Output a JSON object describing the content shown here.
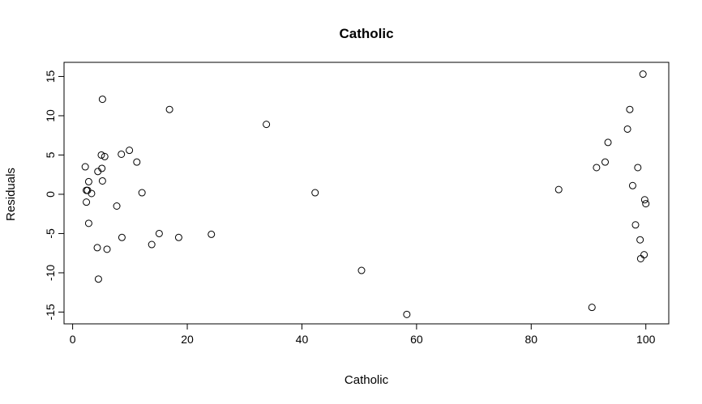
{
  "chart_data": {
    "type": "scatter",
    "title": "Catholic",
    "xlabel": "Catholic",
    "ylabel": "Residuals",
    "xlim": [
      -1.5,
      104
    ],
    "ylim": [
      -16.5,
      16.8
    ],
    "xticks": [
      0,
      20,
      40,
      60,
      80,
      100
    ],
    "yticks": [
      -15,
      -10,
      -5,
      0,
      5,
      10,
      15
    ],
    "xtick_labels": [
      "0",
      "20",
      "40",
      "60",
      "80",
      "100"
    ],
    "ytick_labels": [
      "-15",
      "-10",
      "-5",
      "0",
      "5",
      "10",
      "15"
    ],
    "grid": false,
    "marker": "open-circle",
    "points": [
      {
        "x": 5.2,
        "y": 12.1
      },
      {
        "x": 2.2,
        "y": 3.5
      },
      {
        "x": 2.4,
        "y": 0.5
      },
      {
        "x": 2.6,
        "y": 0.5
      },
      {
        "x": 2.4,
        "y": -1.0
      },
      {
        "x": 2.8,
        "y": 1.6
      },
      {
        "x": 3.3,
        "y": 0.1
      },
      {
        "x": 2.8,
        "y": -3.7
      },
      {
        "x": 4.3,
        "y": -6.8
      },
      {
        "x": 4.4,
        "y": 2.9
      },
      {
        "x": 4.5,
        "y": -10.8
      },
      {
        "x": 5.0,
        "y": 5.0
      },
      {
        "x": 5.1,
        "y": 3.3
      },
      {
        "x": 5.2,
        "y": 1.7
      },
      {
        "x": 5.6,
        "y": 4.8
      },
      {
        "x": 6.0,
        "y": -7.0
      },
      {
        "x": 7.7,
        "y": -1.5
      },
      {
        "x": 8.5,
        "y": 5.1
      },
      {
        "x": 8.6,
        "y": -5.5
      },
      {
        "x": 9.9,
        "y": 5.6
      },
      {
        "x": 11.2,
        "y": 4.1
      },
      {
        "x": 12.1,
        "y": 0.2
      },
      {
        "x": 13.8,
        "y": -6.4
      },
      {
        "x": 15.1,
        "y": -5.0
      },
      {
        "x": 16.9,
        "y": 10.8
      },
      {
        "x": 18.5,
        "y": -5.5
      },
      {
        "x": 24.2,
        "y": -5.1
      },
      {
        "x": 33.8,
        "y": 8.9
      },
      {
        "x": 42.3,
        "y": 0.2
      },
      {
        "x": 50.4,
        "y": -9.7
      },
      {
        "x": 58.3,
        "y": -15.3
      },
      {
        "x": 84.8,
        "y": 0.6
      },
      {
        "x": 90.6,
        "y": -14.4
      },
      {
        "x": 91.4,
        "y": 3.4
      },
      {
        "x": 92.9,
        "y": 4.1
      },
      {
        "x": 93.4,
        "y": 6.6
      },
      {
        "x": 96.8,
        "y": 8.3
      },
      {
        "x": 97.2,
        "y": 10.8
      },
      {
        "x": 97.7,
        "y": 1.1
      },
      {
        "x": 98.2,
        "y": -3.9
      },
      {
        "x": 98.6,
        "y": 3.4
      },
      {
        "x": 99.0,
        "y": -5.8
      },
      {
        "x": 99.1,
        "y": -8.2
      },
      {
        "x": 99.5,
        "y": 15.3
      },
      {
        "x": 99.7,
        "y": -7.7
      },
      {
        "x": 99.8,
        "y": -0.7
      },
      {
        "x": 100.0,
        "y": -1.2
      }
    ]
  }
}
